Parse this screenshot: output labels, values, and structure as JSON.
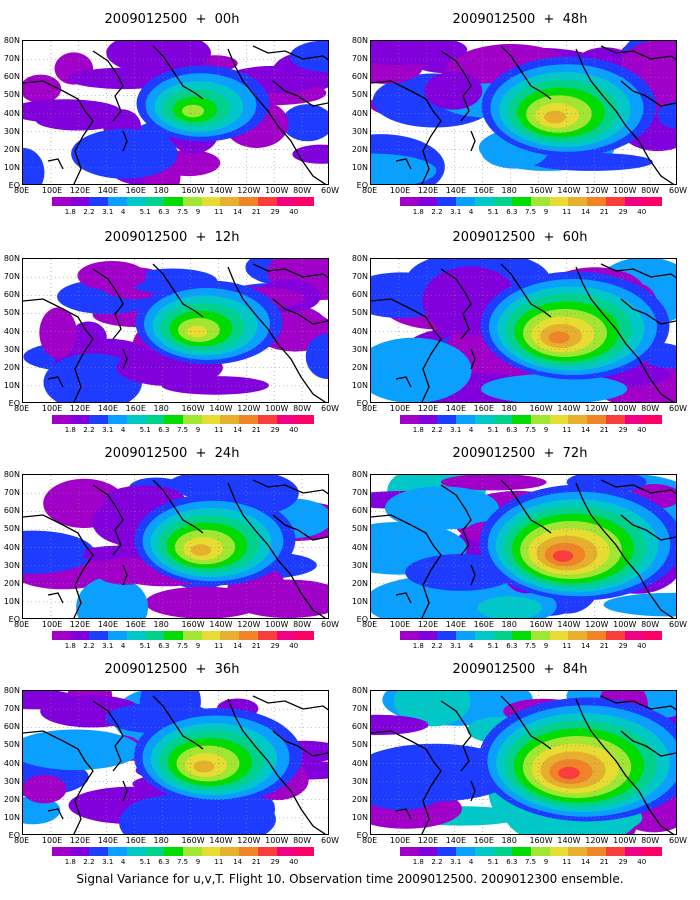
{
  "panels": [
    {
      "title": "2009012500  +  00h",
      "intensity": 0.25
    },
    {
      "title": "2009012500  +  48h",
      "intensity": 0.55
    },
    {
      "title": "2009012500  +  12h",
      "intensity": 0.35
    },
    {
      "title": "2009012500  +  60h",
      "intensity": 0.65
    },
    {
      "title": "2009012500  +  24h",
      "intensity": 0.45
    },
    {
      "title": "2009012500  +  72h",
      "intensity": 0.75
    },
    {
      "title": "2009012500  +  36h",
      "intensity": 0.5
    },
    {
      "title": "2009012500  +  84h",
      "intensity": 0.85
    }
  ],
  "lat_labels": [
    "80N",
    "70N",
    "60N",
    "50N",
    "40N",
    "30N",
    "20N",
    "10N",
    "EQ"
  ],
  "lon_labels": [
    "80E",
    "100E",
    "120E",
    "140E",
    "160E",
    "180",
    "160W",
    "140W",
    "120W",
    "100W",
    "80W",
    "60W"
  ],
  "colorbar": {
    "labels": [
      "1.8",
      "2.2",
      "3.1",
      "4",
      "5.1",
      "6.3",
      "7.5",
      "9",
      "11",
      "14",
      "21",
      "29",
      "40"
    ],
    "colors": [
      "#a000c8",
      "#8200dc",
      "#1e3cff",
      "#0aa0ff",
      "#00c8c8",
      "#00d28c",
      "#00dc00",
      "#a0e632",
      "#e6dc32",
      "#e6af2d",
      "#f08228",
      "#fa3c3c",
      "#f00082"
    ]
  },
  "caption": "Signal Variance for u,v,T. Flight 10. Observation time 2009012500. 2009012300 ensemble."
}
